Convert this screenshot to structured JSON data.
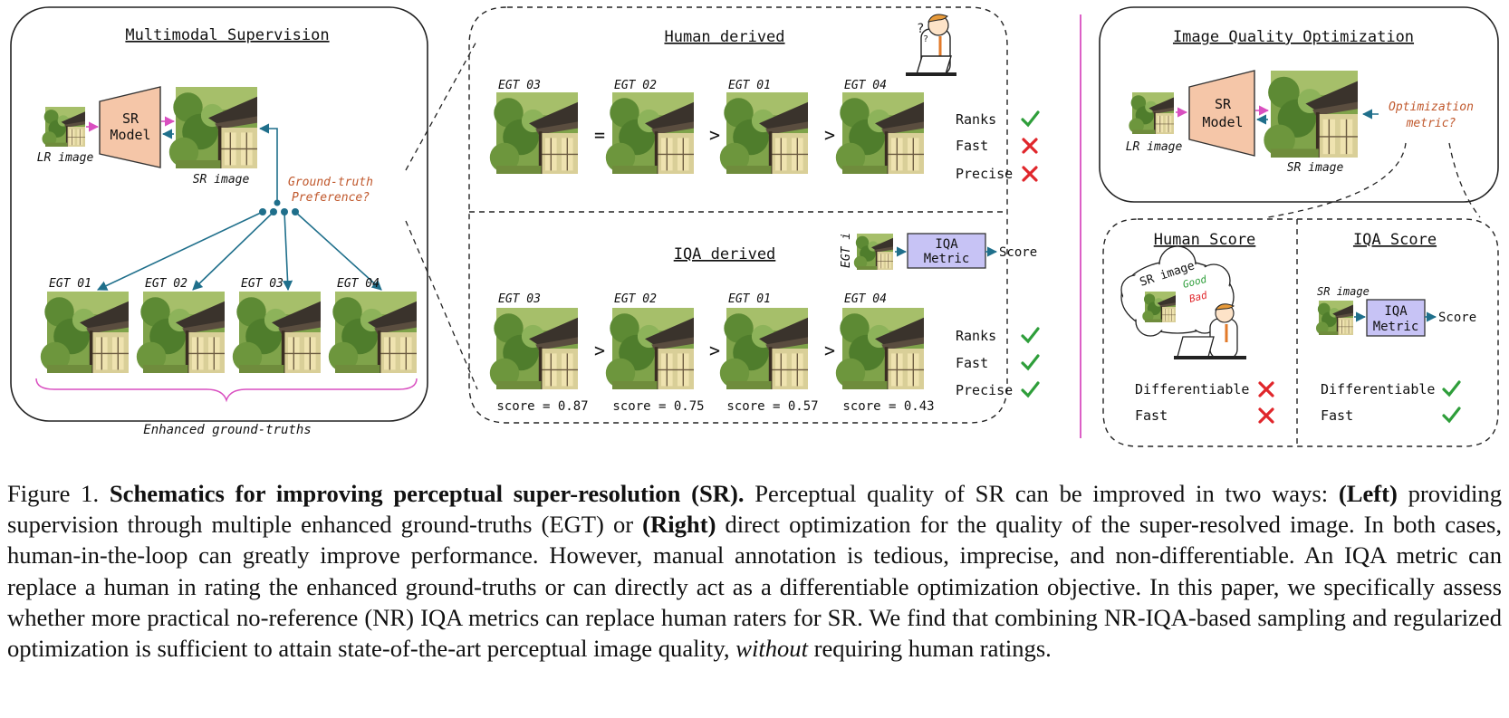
{
  "left_panel": {
    "title": "Multimodal Supervision",
    "lr_label": "LR image",
    "sr_model_label": [
      "SR",
      "Model"
    ],
    "sr_label": "SR image",
    "gt_pref": [
      "Ground-truth",
      "Preference?"
    ],
    "egt_labels": [
      "EGT 01",
      "EGT 02",
      "EGT 03",
      "EGT 04"
    ],
    "enhanced_label": "Enhanced ground-truths"
  },
  "human_derived": {
    "title": "Human derived",
    "order": [
      "EGT 03",
      "EGT 02",
      "EGT 01",
      "EGT 04"
    ],
    "operators": [
      "=",
      ">",
      ">"
    ],
    "criteria": [
      {
        "label": "Ranks",
        "ok": true
      },
      {
        "label": "Fast",
        "ok": false
      },
      {
        "label": "Precise",
        "ok": false
      }
    ]
  },
  "iqa_derived": {
    "title": "IQA derived",
    "order": [
      "EGT 03",
      "EGT 02",
      "EGT 01",
      "EGT 04"
    ],
    "operators": [
      ">",
      ">",
      ">"
    ],
    "scores": [
      "score = 0.87",
      "score = 0.75",
      "score = 0.57",
      "score = 0.43"
    ],
    "mini_input": "EGT i",
    "metric_label": [
      "IQA",
      "Metric"
    ],
    "score_label": "Score",
    "criteria": [
      {
        "label": "Ranks",
        "ok": true
      },
      {
        "label": "Fast",
        "ok": true
      },
      {
        "label": "Precise",
        "ok": true
      }
    ]
  },
  "right_panel": {
    "title": "Image Quality Optimization",
    "lr_label": "LR image",
    "sr_model_label": [
      "SR",
      "Model"
    ],
    "sr_label": "SR image",
    "opt_metric": [
      "Optimization",
      "metric?"
    ]
  },
  "human_score": {
    "title": "Human Score",
    "bubble_text": "SR image",
    "good": "Good",
    "bad": "Bad",
    "criteria": [
      {
        "label": "Differentiable",
        "ok": false
      },
      {
        "label": "Fast",
        "ok": false
      }
    ]
  },
  "iqa_score": {
    "title": "IQA Score",
    "input_label": "SR image",
    "metric_label": [
      "IQA",
      "Metric"
    ],
    "score_label": "Score",
    "criteria": [
      {
        "label": "Differentiable",
        "ok": true
      },
      {
        "label": "Fast",
        "ok": true
      }
    ]
  },
  "caption": {
    "fig_label": "Figure 1.",
    "bold_title": "Schematics for improving perceptual super-resolution (SR).",
    "t1": " Perceptual quality of SR can be improved in two ways: ",
    "left": "(Left)",
    "t2": " providing supervision through multiple enhanced ground-truths (EGT) or ",
    "right": "(Right)",
    "t3": " direct optimization for the quality of the super-resolved image. In both cases, human-in-the-loop can greatly improve performance. However, manual annotation is tedious, imprecise, and non-differentiable. An IQA metric can replace a human in rating the enhanced ground-truths or can directly act as a differentiable optimization objective. In this paper, we specifically assess whether more practical no-reference (NR) IQA metrics can replace human raters for SR. We find that combining NR-IQA-based sampling and regularized optimization is sufficient to attain state-of-the-art perceptual image quality, ",
    "without": "without",
    "t4": " requiring human ratings."
  },
  "colors": {
    "teal": "#1f6f8b",
    "pink": "#d94fc0",
    "model_fill": "#f5c6a8",
    "metric_fill": "#c7c3f5",
    "orange_text": "#c0582c",
    "check": "#2e9e3a",
    "cross": "#e0262b"
  }
}
